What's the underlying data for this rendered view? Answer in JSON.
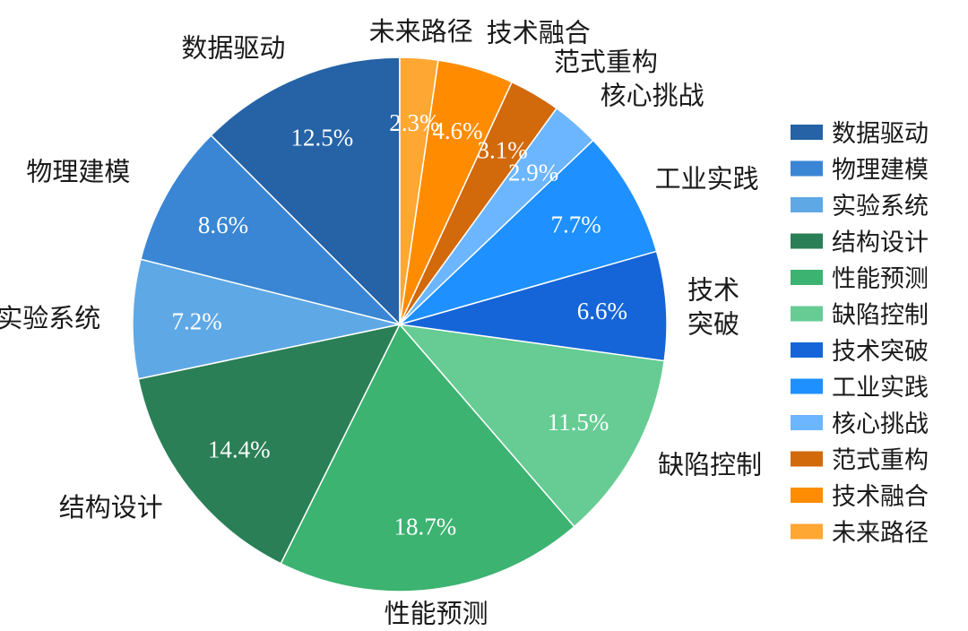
{
  "chart_data": {
    "type": "pie",
    "title": "",
    "legend_position": "right",
    "slices": [
      {
        "label": "数据驱动",
        "value": 12.5,
        "display": "12.5%",
        "color": "#2563a6"
      },
      {
        "label": "物理建模",
        "value": 8.6,
        "display": "8.6%",
        "color": "#3a86d4"
      },
      {
        "label": "实验系统",
        "value": 7.2,
        "display": "7.2%",
        "color": "#5fa8e6"
      },
      {
        "label": "结构设计",
        "value": 14.4,
        "display": "14.4%",
        "color": "#2a7f56"
      },
      {
        "label": "性能预测",
        "value": 18.7,
        "display": "18.7%",
        "color": "#3cb371"
      },
      {
        "label": "缺陷控制",
        "value": 11.5,
        "display": "11.5%",
        "color": "#66cc94"
      },
      {
        "label": "技术突破",
        "value": 6.6,
        "display": "6.6%",
        "color": "#1565d8"
      },
      {
        "label": "工业实践",
        "value": 7.7,
        "display": "7.7%",
        "color": "#1e90ff"
      },
      {
        "label": "核心挑战",
        "value": 2.9,
        "display": "2.9%",
        "color": "#6cb6ff"
      },
      {
        "label": "范式重构",
        "value": 3.1,
        "display": "3.1%",
        "color": "#d2690a"
      },
      {
        "label": "技术融合",
        "value": 4.6,
        "display": "4.6%",
        "color": "#ff8c00"
      },
      {
        "label": "未来路径",
        "value": 2.3,
        "display": "2.3%",
        "color": "#ffa733"
      }
    ]
  }
}
